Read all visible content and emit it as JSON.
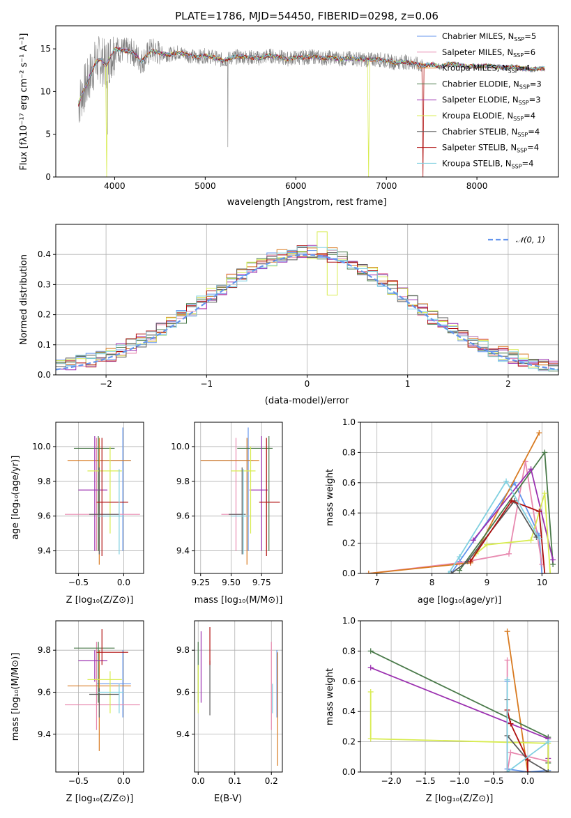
{
  "colors": {
    "c0": "#6495ed",
    "c1": "#e88ab0",
    "c2": "#d87a20",
    "c3": "#4a7a4a",
    "c4": "#9b30b0",
    "c5": "#d8ec50",
    "c6": "#5a5a5a",
    "c7": "#b01010",
    "c8": "#80d0e0",
    "data": "#808080"
  },
  "chart_data": [
    {
      "id": "spectrum",
      "type": "line",
      "title": "PLATE=1786, MJD=54450, FIBERID=0298, z=0.06",
      "xlabel": "wavelength [Angstrom, rest frame]",
      "ylabel": "Flux [fλ10⁻¹⁷ erg cm⁻² s⁻¹ A⁻¹]",
      "xlim": [
        3350,
        8900
      ],
      "ylim": [
        0,
        17.7
      ],
      "xticks": [
        "4000",
        "5000",
        "6000",
        "7000",
        "8000"
      ],
      "yticks": [
        "0",
        "5",
        "10",
        "15"
      ],
      "grid": false,
      "legend_position": "right",
      "legend": [
        {
          "label": "Chabrier MILES, N",
          "sub": "SSP",
          "tail": "=5",
          "color_key": "c0"
        },
        {
          "label": "Salpeter MILES, N",
          "sub": "SSP",
          "tail": "=6",
          "color_key": "c1"
        },
        {
          "label": "Kroupa MILES, N",
          "sub": "SSP",
          "tail": "=4",
          "color_key": "c2"
        },
        {
          "label": "Chabrier ELODIE, N",
          "sub": "SSP",
          "tail": "=3",
          "color_key": "c3"
        },
        {
          "label": "Salpeter ELODIE, N",
          "sub": "SSP",
          "tail": "=3",
          "color_key": "c4"
        },
        {
          "label": "Kroupa ELODIE, N",
          "sub": "SSP",
          "tail": "=4",
          "color_key": "c5"
        },
        {
          "label": "Chabrier STELIB, N",
          "sub": "SSP",
          "tail": "=4",
          "color_key": "c6"
        },
        {
          "label": "Salpeter STELIB, N",
          "sub": "SSP",
          "tail": "=4",
          "color_key": "c7"
        },
        {
          "label": "Kroupa STELIB, N",
          "sub": "SSP",
          "tail": "=4",
          "color_key": "c8"
        }
      ],
      "continuum": [
        [
          3600,
          8.5
        ],
        [
          3650,
          10.0
        ],
        [
          3700,
          11.0
        ],
        [
          3750,
          12.5
        ],
        [
          3800,
          13.5
        ],
        [
          3850,
          13.8
        ],
        [
          3900,
          13.0
        ],
        [
          3950,
          14.0
        ],
        [
          4000,
          15.0
        ],
        [
          4100,
          14.8
        ],
        [
          4200,
          14.6
        ],
        [
          4300,
          13.5
        ],
        [
          4400,
          14.8
        ],
        [
          4500,
          14.5
        ],
        [
          4600,
          14.3
        ],
        [
          4700,
          14.6
        ],
        [
          4800,
          14.3
        ],
        [
          4900,
          14.0
        ],
        [
          5000,
          14.2
        ],
        [
          5100,
          14.0
        ],
        [
          5200,
          13.6
        ],
        [
          5300,
          14.0
        ],
        [
          5400,
          14.1
        ],
        [
          5500,
          14.0
        ],
        [
          5600,
          13.9
        ],
        [
          5700,
          14.2
        ],
        [
          5800,
          14.1
        ],
        [
          5900,
          13.8
        ],
        [
          6000,
          14.0
        ],
        [
          6100,
          14.0
        ],
        [
          6200,
          14.1
        ],
        [
          6300,
          13.9
        ],
        [
          6400,
          14.0
        ],
        [
          6500,
          13.8
        ],
        [
          6600,
          13.9
        ],
        [
          6700,
          13.8
        ],
        [
          6800,
          13.7
        ],
        [
          6900,
          13.8
        ],
        [
          7000,
          13.6
        ],
        [
          7100,
          13.4
        ],
        [
          7200,
          13.5
        ],
        [
          7300,
          13.3
        ],
        [
          7400,
          13.0
        ],
        [
          7500,
          13.2
        ],
        [
          7600,
          12.9
        ],
        [
          7700,
          13.3
        ],
        [
          7800,
          13.1
        ],
        [
          7900,
          12.9
        ],
        [
          8000,
          13.0
        ],
        [
          8100,
          13.0
        ],
        [
          8200,
          12.9
        ],
        [
          8300,
          12.8
        ],
        [
          8400,
          12.9
        ],
        [
          8500,
          12.7
        ],
        [
          8600,
          12.6
        ],
        [
          8700,
          12.7
        ]
      ]
    },
    {
      "id": "residuals",
      "type": "histogram",
      "xlabel": "(data-model)/error",
      "ylabel": "Normed distribution",
      "xlim": [
        -2.5,
        2.5
      ],
      "ylim": [
        0,
        0.5
      ],
      "xticks": [
        "−2",
        "−1",
        "0",
        "1",
        "2"
      ],
      "yticks": [
        "0.0",
        "0.1",
        "0.2",
        "0.3",
        "0.4"
      ],
      "grid": true,
      "legend_position": "top-right",
      "legend": [
        {
          "label": "𝒩(0, 1)",
          "color_key": "c0"
        }
      ],
      "bin_width": 0.1
    },
    {
      "id": "age-vs-Z",
      "type": "errorbar",
      "xlabel": "Z [log₁₀(Z/Z⊙)]",
      "ylabel": "age  [log₁₀(age/yr)]",
      "xlim": [
        -0.75,
        0.22
      ],
      "ylim": [
        9.27,
        10.14
      ],
      "xticks": [
        "−0.5",
        "0.0"
      ],
      "yticks": [
        "9.4",
        "9.6",
        "9.8",
        "10.0"
      ],
      "grid": true,
      "points": [
        {
          "c": "c0",
          "x": -0.01,
          "xlo": -0.3,
          "xhi": 0.08,
          "y": 9.92,
          "ylo": 9.4,
          "yhi": 10.11
        },
        {
          "c": "c1",
          "x": -0.3,
          "xlo": -0.65,
          "xhi": 0.18,
          "y": 9.61,
          "ylo": 9.4,
          "yhi": 10.05
        },
        {
          "c": "c2",
          "x": -0.27,
          "xlo": -0.62,
          "xhi": 0.08,
          "y": 9.92,
          "ylo": 9.32,
          "yhi": 10.05
        },
        {
          "c": "c3",
          "x": -0.28,
          "xlo": -0.55,
          "xhi": -0.1,
          "y": 9.99,
          "ylo": 9.4,
          "yhi": 10.06
        },
        {
          "c": "c4",
          "x": -0.32,
          "xlo": -0.5,
          "xhi": -0.18,
          "y": 9.75,
          "ylo": 9.4,
          "yhi": 10.06
        },
        {
          "c": "c5",
          "x": -0.15,
          "xlo": -0.4,
          "xhi": -0.02,
          "y": 9.86,
          "ylo": 9.5,
          "yhi": 10.0
        },
        {
          "c": "c6",
          "x": -0.27,
          "xlo": -0.38,
          "xhi": -0.05,
          "y": 9.61,
          "ylo": 9.38,
          "yhi": 9.88
        },
        {
          "c": "c7",
          "x": -0.24,
          "xlo": -0.3,
          "xhi": 0.05,
          "y": 9.68,
          "ylo": 9.37,
          "yhi": 10.05
        },
        {
          "c": "c8",
          "x": -0.05,
          "xlo": -0.28,
          "xhi": 0.0,
          "y": 9.6,
          "ylo": 9.38,
          "yhi": 9.87
        }
      ]
    },
    {
      "id": "age-vs-mass",
      "type": "errorbar",
      "xlabel": "mass [log₁₀(M/M⊙)]",
      "ylabel": "",
      "xlim": [
        9.2,
        9.92
      ],
      "ylim": [
        9.27,
        10.14
      ],
      "xticks": [
        "9.25",
        "9.50",
        "9.75"
      ],
      "yticks": [
        "9.4",
        "9.6",
        "9.8",
        "10.0"
      ],
      "grid": true,
      "points": [
        {
          "c": "c0",
          "x": 9.64,
          "xlo": 9.25,
          "xhi": 9.68,
          "y": 9.92,
          "ylo": 9.4,
          "yhi": 10.11
        },
        {
          "c": "c1",
          "x": 9.54,
          "xlo": 9.42,
          "xhi": 9.58,
          "y": 9.61,
          "ylo": 9.4,
          "yhi": 10.05
        },
        {
          "c": "c2",
          "x": 9.63,
          "xlo": 9.25,
          "xhi": 9.73,
          "y": 9.92,
          "ylo": 9.32,
          "yhi": 10.05
        },
        {
          "c": "c3",
          "x": 9.81,
          "xlo": 9.55,
          "xhi": 9.84,
          "y": 9.99,
          "ylo": 9.4,
          "yhi": 10.06
        },
        {
          "c": "c4",
          "x": 9.75,
          "xlo": 9.65,
          "xhi": 9.8,
          "y": 9.75,
          "ylo": 9.4,
          "yhi": 10.06
        },
        {
          "c": "c5",
          "x": 9.66,
          "xlo": 9.5,
          "xhi": 9.7,
          "y": 9.86,
          "ylo": 9.5,
          "yhi": 10.0
        },
        {
          "c": "c6",
          "x": 9.59,
          "xlo": 9.48,
          "xhi": 9.62,
          "y": 9.61,
          "ylo": 9.38,
          "yhi": 9.88
        },
        {
          "c": "c7",
          "x": 9.79,
          "xlo": 9.73,
          "xhi": 9.9,
          "y": 9.68,
          "ylo": 9.37,
          "yhi": 10.05
        },
        {
          "c": "c8",
          "x": 9.6,
          "xlo": 9.5,
          "xhi": 9.64,
          "y": 9.6,
          "ylo": 9.38,
          "yhi": 9.87
        }
      ]
    },
    {
      "id": "mass-weight-vs-age",
      "type": "line",
      "xlabel": "age  [log₁₀(age/yr)]",
      "ylabel": "mass weight",
      "xlim": [
        6.7,
        10.3
      ],
      "ylim": [
        0,
        1.0
      ],
      "xticks": [
        "7",
        "8",
        "9",
        "10"
      ],
      "yticks": [
        "0.0",
        "0.2",
        "0.4",
        "0.6",
        "0.8",
        "1.0"
      ],
      "grid": true,
      "series": [
        {
          "c": "c0",
          "x": [
            8.35,
            8.5,
            9.5,
            9.95,
            10.0
          ],
          "y": [
            0.0,
            0.08,
            0.6,
            0.25,
            0.0
          ]
        },
        {
          "c": "c1",
          "x": [
            6.85,
            8.5,
            9.4,
            9.7,
            10.0
          ],
          "y": [
            0.0,
            0.07,
            0.13,
            0.74,
            0.06
          ]
        },
        {
          "c": "c2",
          "x": [
            6.85,
            8.7,
            9.95
          ],
          "y": [
            0.0,
            0.07,
            0.93
          ]
        },
        {
          "c": "c3",
          "x": [
            8.5,
            10.05,
            10.2
          ],
          "y": [
            0.02,
            0.8,
            0.06
          ]
        },
        {
          "c": "c4",
          "x": [
            8.75,
            9.8,
            10.2
          ],
          "y": [
            0.22,
            0.69,
            0.09
          ]
        },
        {
          "c": "c5",
          "x": [
            8.8,
            9.0,
            9.8,
            10.05,
            10.15
          ],
          "y": [
            0.13,
            0.19,
            0.22,
            0.53,
            0.0
          ]
        },
        {
          "c": "c6",
          "x": [
            8.35,
            8.65,
            9.5,
            9.9
          ],
          "y": [
            0.0,
            0.08,
            0.48,
            0.24
          ]
        },
        {
          "c": "c7",
          "x": [
            8.7,
            9.45,
            9.95,
            10.05
          ],
          "y": [
            0.08,
            0.48,
            0.41,
            0.0
          ]
        },
        {
          "c": "c8",
          "x": [
            8.3,
            8.5,
            9.35,
            9.95
          ],
          "y": [
            0.0,
            0.11,
            0.61,
            0.23
          ]
        }
      ]
    },
    {
      "id": "mass-vs-Z",
      "type": "errorbar",
      "xlabel": "Z [log₁₀(Z/Z⊙)]",
      "ylabel": "mass [log₁₀(M/M⊙)]",
      "xlim": [
        -0.75,
        0.22
      ],
      "ylim": [
        9.22,
        9.94
      ],
      "xticks": [
        "−0.5",
        "0.0"
      ],
      "yticks": [
        "9.4",
        "9.6",
        "9.8"
      ],
      "grid": true,
      "points": [
        {
          "c": "c0",
          "x": -0.01,
          "xlo": -0.3,
          "xhi": 0.08,
          "y": 9.64,
          "ylo": 9.48,
          "yhi": 9.8
        },
        {
          "c": "c1",
          "x": -0.3,
          "xlo": -0.65,
          "xhi": 0.18,
          "y": 9.54,
          "ylo": 9.42,
          "yhi": 9.84
        },
        {
          "c": "c2",
          "x": -0.27,
          "xlo": -0.62,
          "xhi": 0.08,
          "y": 9.63,
          "ylo": 9.32,
          "yhi": 9.8
        },
        {
          "c": "c3",
          "x": -0.28,
          "xlo": -0.55,
          "xhi": -0.1,
          "y": 9.81,
          "ylo": 9.55,
          "yhi": 9.84
        },
        {
          "c": "c4",
          "x": -0.32,
          "xlo": -0.5,
          "xhi": -0.18,
          "y": 9.75,
          "ylo": 9.65,
          "yhi": 9.8
        },
        {
          "c": "c5",
          "x": -0.15,
          "xlo": -0.4,
          "xhi": -0.02,
          "y": 9.66,
          "ylo": 9.5,
          "yhi": 9.7
        },
        {
          "c": "c6",
          "x": -0.27,
          "xlo": -0.38,
          "xhi": -0.05,
          "y": 9.59,
          "ylo": 9.48,
          "yhi": 9.62
        },
        {
          "c": "c7",
          "x": -0.24,
          "xlo": -0.3,
          "xhi": 0.05,
          "y": 9.79,
          "ylo": 9.73,
          "yhi": 9.9
        },
        {
          "c": "c8",
          "x": -0.05,
          "xlo": -0.28,
          "xhi": 0.0,
          "y": 9.6,
          "ylo": 9.5,
          "yhi": 9.64
        }
      ]
    },
    {
      "id": "mass-vs-ebv",
      "type": "errorbar",
      "xlabel": "E(B-V)",
      "ylabel": "",
      "xlim": [
        -0.01,
        0.23
      ],
      "ylim": [
        9.22,
        9.94
      ],
      "xticks": [
        "0.0",
        "0.1",
        "0.2"
      ],
      "yticks": [
        "9.4",
        "9.6",
        "9.8"
      ],
      "grid": true,
      "points": [
        {
          "c": "c0",
          "x": 0.215,
          "xlo": 0.215,
          "xhi": 0.215,
          "y": 9.64,
          "ylo": 9.48,
          "yhi": 9.8
        },
        {
          "c": "c1",
          "x": 0.2,
          "xlo": 0.2,
          "xhi": 0.2,
          "y": 9.54,
          "ylo": 9.42,
          "yhi": 9.84
        },
        {
          "c": "c2",
          "x": 0.217,
          "xlo": 0.217,
          "xhi": 0.217,
          "y": 9.63,
          "ylo": 9.25,
          "yhi": 9.79
        },
        {
          "c": "c3",
          "x": 0.0,
          "xlo": 0.0,
          "xhi": 0.0,
          "y": 9.81,
          "ylo": 9.55,
          "yhi": 9.84
        },
        {
          "c": "c4",
          "x": 0.008,
          "xlo": 0.008,
          "xhi": 0.008,
          "y": 9.75,
          "ylo": 9.55,
          "yhi": 9.89
        },
        {
          "c": "c5",
          "x": 0.0,
          "xlo": 0.0,
          "xhi": 0.0,
          "y": 9.66,
          "ylo": 9.5,
          "yhi": 9.73
        },
        {
          "c": "c6",
          "x": 0.032,
          "xlo": 0.032,
          "xhi": 0.032,
          "y": 9.59,
          "ylo": 9.49,
          "yhi": 9.75
        },
        {
          "c": "c7",
          "x": 0.032,
          "xlo": 0.032,
          "xhi": 0.032,
          "y": 9.79,
          "ylo": 9.73,
          "yhi": 9.91
        },
        {
          "c": "c8",
          "x": 0.203,
          "xlo": 0.203,
          "xhi": 0.203,
          "y": 9.6,
          "ylo": 9.5,
          "yhi": 9.64
        }
      ]
    },
    {
      "id": "mass-weight-vs-Z",
      "type": "line",
      "xlabel": "Z [log₁₀(Z/Z⊙)]",
      "ylabel": "mass weight",
      "xlim": [
        -2.45,
        0.45
      ],
      "ylim": [
        0,
        1.0
      ],
      "xticks": [
        "−2.0",
        "−1.5",
        "−1.0",
        "−0.5",
        "0.0"
      ],
      "yticks": [
        "0.0",
        "0.2",
        "0.4",
        "0.6",
        "0.8",
        "1.0"
      ],
      "grid": true,
      "series": [
        {
          "c": "c0",
          "x": [
            -0.3,
            -0.3,
            0.0,
            0.3
          ],
          "y": [
            0.6,
            0.02,
            0.0,
            0.01
          ]
        },
        {
          "c": "c1",
          "x": [
            -0.3,
            -0.3,
            -0.25,
            0.3
          ],
          "y": [
            0.74,
            0.0,
            0.13,
            0.07
          ]
        },
        {
          "c": "c2",
          "x": [
            -0.3,
            0.0
          ],
          "y": [
            0.93,
            0.0
          ]
        },
        {
          "c": "c3",
          "x": [
            -2.3,
            0.3,
            0.3
          ],
          "y": [
            0.8,
            0.23,
            0.06
          ]
        },
        {
          "c": "c4",
          "x": [
            -2.3,
            0.3,
            0.3
          ],
          "y": [
            0.69,
            0.22,
            0.09
          ]
        },
        {
          "c": "c5",
          "x": [
            -2.3,
            -2.3,
            0.3,
            0.3
          ],
          "y": [
            0.53,
            0.22,
            0.19,
            0.0
          ]
        },
        {
          "c": "c6",
          "x": [
            -0.3,
            -0.3,
            0.0,
            0.3
          ],
          "y": [
            0.48,
            0.24,
            0.08,
            0.0
          ]
        },
        {
          "c": "c7",
          "x": [
            -0.3,
            -0.25,
            0.0,
            0.0
          ],
          "y": [
            0.41,
            0.32,
            0.08,
            0.0
          ]
        },
        {
          "c": "c8",
          "x": [
            -0.3,
            -0.3,
            0.3
          ],
          "y": [
            0.61,
            0.0,
            0.2
          ]
        }
      ]
    }
  ]
}
